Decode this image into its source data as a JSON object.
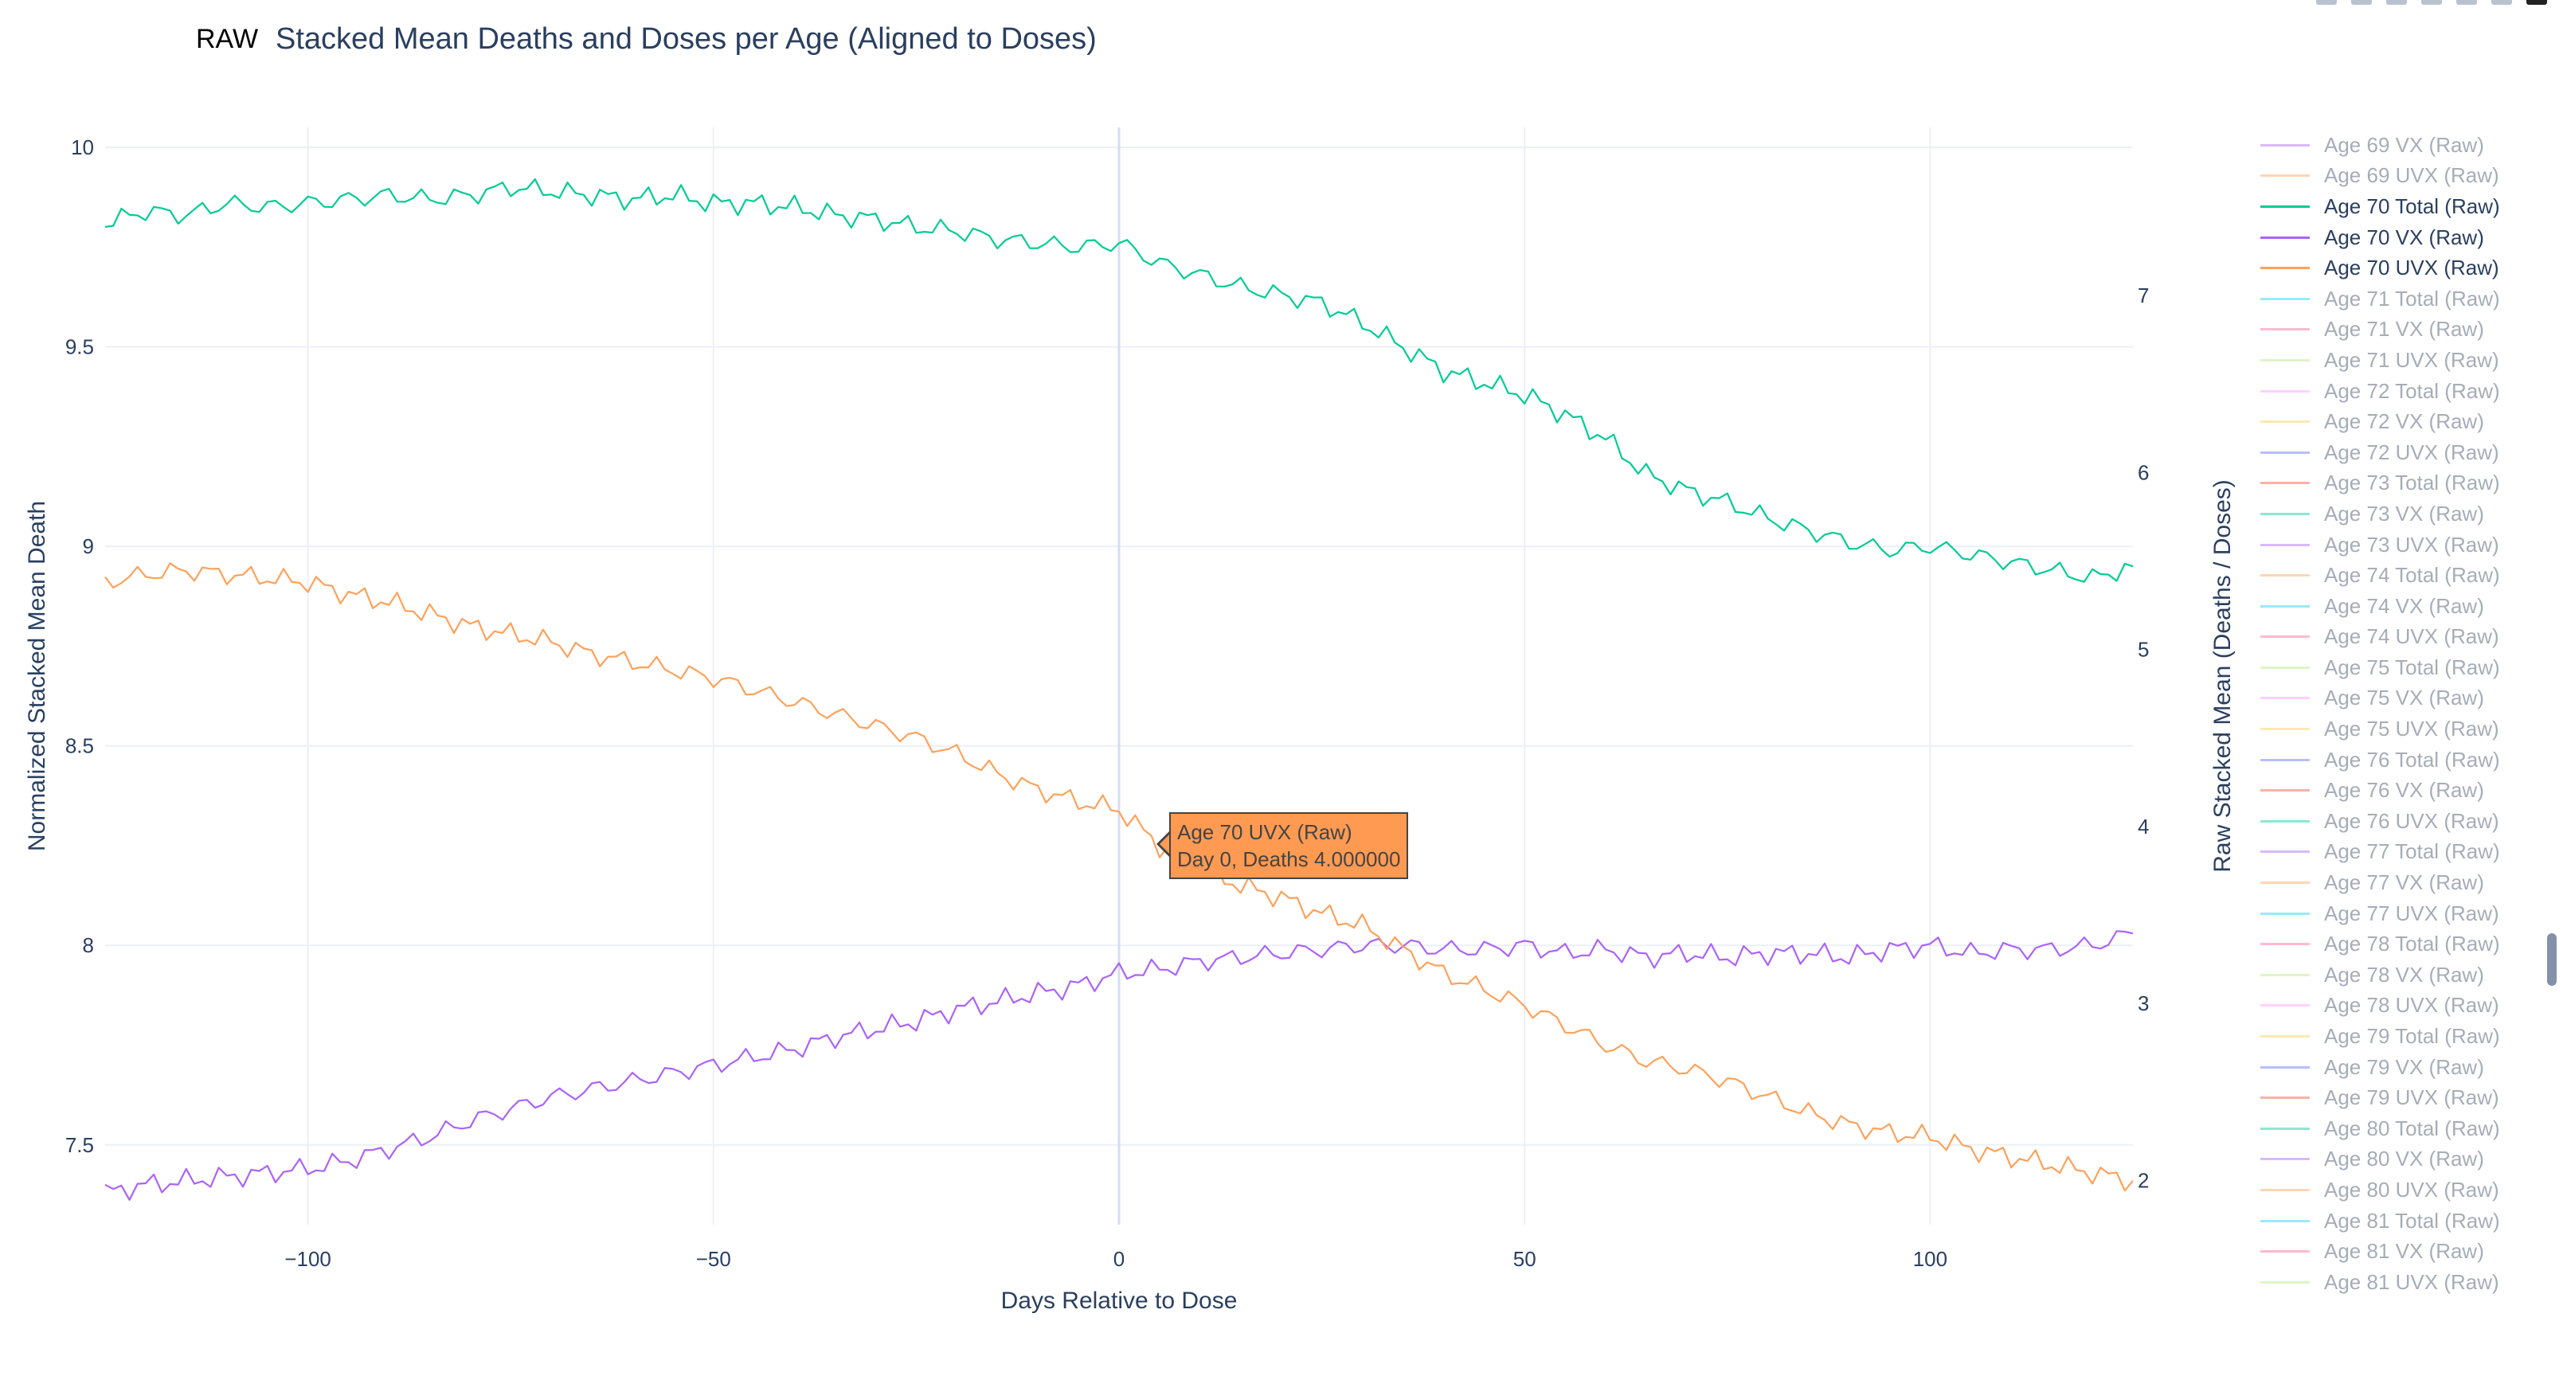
{
  "header": {
    "mode_badge": "RAW",
    "title": "Stacked Mean Deaths and Doses per Age (Aligned to Doses)"
  },
  "colors": {
    "total": "#00cc96",
    "vx": "#ab63fa",
    "uvx": "#ffa15a",
    "grid": "#ebf0f8",
    "axis_text": "#2a3f5f",
    "hover_line": "#d5dcf5"
  },
  "tooltip": {
    "series": "Age 70 UVX (Raw)",
    "detail": "Day 0, Deaths 4.000000"
  },
  "legend": {
    "items": [
      {
        "label": "Age 69 VX (Raw)",
        "color": "#ab63fa",
        "visible": false
      },
      {
        "label": "Age 69 UVX (Raw)",
        "color": "#ffa15a",
        "visible": false
      },
      {
        "label": "Age 70 Total (Raw)",
        "color": "#00cc96",
        "visible": true
      },
      {
        "label": "Age 70 VX (Raw)",
        "color": "#ab63fa",
        "visible": true
      },
      {
        "label": "Age 70 UVX (Raw)",
        "color": "#ffa15a",
        "visible": true
      },
      {
        "label": "Age 71 Total (Raw)",
        "color": "#19d3f3",
        "visible": false
      },
      {
        "label": "Age 71 VX (Raw)",
        "color": "#ff6692",
        "visible": false
      },
      {
        "label": "Age 71 UVX (Raw)",
        "color": "#b6e880",
        "visible": false
      },
      {
        "label": "Age 72 Total (Raw)",
        "color": "#ff97ff",
        "visible": false
      },
      {
        "label": "Age 72 VX (Raw)",
        "color": "#fecb52",
        "visible": false
      },
      {
        "label": "Age 72 UVX (Raw)",
        "color": "#636efa",
        "visible": false
      },
      {
        "label": "Age 73 Total (Raw)",
        "color": "#ef553b",
        "visible": false
      },
      {
        "label": "Age 73 VX (Raw)",
        "color": "#00cc96",
        "visible": false
      },
      {
        "label": "Age 73 UVX (Raw)",
        "color": "#ab63fa",
        "visible": false
      },
      {
        "label": "Age 74 Total (Raw)",
        "color": "#ffa15a",
        "visible": false
      },
      {
        "label": "Age 74 VX (Raw)",
        "color": "#19d3f3",
        "visible": false
      },
      {
        "label": "Age 74 UVX (Raw)",
        "color": "#ff6692",
        "visible": false
      },
      {
        "label": "Age 75 Total (Raw)",
        "color": "#b6e880",
        "visible": false
      },
      {
        "label": "Age 75 VX (Raw)",
        "color": "#ff97ff",
        "visible": false
      },
      {
        "label": "Age 75 UVX (Raw)",
        "color": "#fecb52",
        "visible": false
      },
      {
        "label": "Age 76 Total (Raw)",
        "color": "#636efa",
        "visible": false
      },
      {
        "label": "Age 76 VX (Raw)",
        "color": "#ef553b",
        "visible": false
      },
      {
        "label": "Age 76 UVX (Raw)",
        "color": "#00cc96",
        "visible": false
      },
      {
        "label": "Age 77 Total (Raw)",
        "color": "#ab63fa",
        "visible": false
      },
      {
        "label": "Age 77 VX (Raw)",
        "color": "#ffa15a",
        "visible": false
      },
      {
        "label": "Age 77 UVX (Raw)",
        "color": "#19d3f3",
        "visible": false
      },
      {
        "label": "Age 78 Total (Raw)",
        "color": "#ff6692",
        "visible": false
      },
      {
        "label": "Age 78 VX (Raw)",
        "color": "#b6e880",
        "visible": false
      },
      {
        "label": "Age 78 UVX (Raw)",
        "color": "#ff97ff",
        "visible": false
      },
      {
        "label": "Age 79 Total (Raw)",
        "color": "#fecb52",
        "visible": false
      },
      {
        "label": "Age 79 VX (Raw)",
        "color": "#636efa",
        "visible": false
      },
      {
        "label": "Age 79 UVX (Raw)",
        "color": "#ef553b",
        "visible": false
      },
      {
        "label": "Age 80 Total (Raw)",
        "color": "#00cc96",
        "visible": false
      },
      {
        "label": "Age 80 VX (Raw)",
        "color": "#ab63fa",
        "visible": false
      },
      {
        "label": "Age 80 UVX (Raw)",
        "color": "#ffa15a",
        "visible": false
      },
      {
        "label": "Age 81 Total (Raw)",
        "color": "#19d3f3",
        "visible": false
      },
      {
        "label": "Age 81 VX (Raw)",
        "color": "#ff6692",
        "visible": false
      },
      {
        "label": "Age 81 UVX (Raw)",
        "color": "#b6e880",
        "visible": false
      }
    ]
  },
  "chart_data": {
    "type": "line",
    "title": "Stacked Mean Deaths and Doses per Age (Aligned to Doses)",
    "xlabel": "Days Relative to Dose",
    "ylabel": "Normalized Stacked Mean Death",
    "y2label": "Raw Stacked Mean (Deaths / Doses)",
    "xlim": [
      -125,
      125
    ],
    "ylim": [
      7.3,
      10.05
    ],
    "y2lim": [
      1.75,
      7.95
    ],
    "x_ticks": [
      -100,
      -50,
      0,
      50,
      100
    ],
    "x_tick_labels": [
      "−100",
      "−50",
      "0",
      "50",
      "100"
    ],
    "y_ticks": [
      7.5,
      8,
      8.5,
      9,
      9.5,
      10
    ],
    "y_tick_labels": [
      "7.5",
      "8",
      "8.5",
      "9",
      "9.5",
      "10"
    ],
    "y2_ticks": [
      2,
      3,
      4,
      5,
      6,
      7
    ],
    "y2_tick_labels": [
      "2",
      "3",
      "4",
      "5",
      "6",
      "7"
    ],
    "grid": true,
    "hover_x": 0,
    "series": [
      {
        "name": "Age 70 Total (Raw)",
        "color": "#00cc96",
        "x": [
          -125,
          -120,
          -115,
          -110,
          -105,
          -100,
          -95,
          -90,
          -85,
          -80,
          -75,
          -70,
          -65,
          -60,
          -55,
          -50,
          -45,
          -40,
          -35,
          -30,
          -25,
          -20,
          -15,
          -10,
          -5,
          0,
          5,
          10,
          15,
          20,
          25,
          30,
          35,
          40,
          45,
          50,
          55,
          60,
          65,
          70,
          75,
          80,
          85,
          90,
          95,
          100,
          105,
          110,
          115,
          120,
          125
        ],
        "y": [
          9.81,
          9.84,
          9.83,
          9.86,
          9.85,
          9.86,
          9.87,
          9.88,
          9.87,
          9.88,
          9.9,
          9.89,
          9.88,
          9.87,
          9.88,
          9.86,
          9.86,
          9.85,
          9.83,
          9.82,
          9.8,
          9.79,
          9.77,
          9.76,
          9.75,
          9.76,
          9.71,
          9.68,
          9.65,
          9.63,
          9.61,
          9.56,
          9.5,
          9.44,
          9.41,
          9.38,
          9.33,
          9.27,
          9.18,
          9.14,
          9.11,
          9.07,
          9.04,
          9.01,
          8.99,
          9.0,
          8.98,
          8.96,
          8.94,
          8.92,
          8.95
        ]
      },
      {
        "name": "Age 70 VX (Raw)",
        "color": "#ab63fa",
        "x": [
          -125,
          -120,
          -115,
          -110,
          -105,
          -100,
          -95,
          -90,
          -85,
          -80,
          -75,
          -70,
          -65,
          -60,
          -55,
          -50,
          -45,
          -40,
          -35,
          -30,
          -25,
          -20,
          -15,
          -10,
          -5,
          0,
          5,
          10,
          15,
          20,
          25,
          30,
          35,
          40,
          45,
          50,
          55,
          60,
          65,
          70,
          75,
          80,
          85,
          90,
          95,
          100,
          105,
          110,
          115,
          120,
          125
        ],
        "y": [
          7.38,
          7.4,
          7.41,
          7.42,
          7.43,
          7.44,
          7.46,
          7.49,
          7.52,
          7.56,
          7.59,
          7.62,
          7.64,
          7.66,
          7.68,
          7.7,
          7.72,
          7.74,
          7.77,
          7.79,
          7.81,
          7.84,
          7.86,
          7.88,
          7.9,
          7.93,
          7.94,
          7.96,
          7.97,
          7.98,
          7.99,
          8.0,
          8.0,
          7.99,
          7.99,
          8.0,
          7.98,
          7.99,
          7.97,
          7.98,
          7.97,
          7.98,
          7.98,
          7.97,
          7.99,
          8.0,
          7.98,
          7.99,
          7.99,
          8.0,
          8.03
        ]
      },
      {
        "name": "Age 70 UVX (Raw)",
        "color": "#ffa15a",
        "x": [
          -125,
          -120,
          -115,
          -110,
          -105,
          -100,
          -95,
          -90,
          -85,
          -80,
          -75,
          -70,
          -65,
          -60,
          -55,
          -50,
          -45,
          -40,
          -35,
          -30,
          -25,
          -20,
          -15,
          -10,
          -5,
          0,
          5,
          10,
          15,
          20,
          25,
          30,
          35,
          40,
          45,
          50,
          55,
          60,
          65,
          70,
          75,
          80,
          85,
          90,
          95,
          100,
          105,
          110,
          115,
          120,
          125
        ],
        "y": [
          8.91,
          8.93,
          8.94,
          8.93,
          8.92,
          8.91,
          8.88,
          8.86,
          8.83,
          8.8,
          8.78,
          8.76,
          8.73,
          8.71,
          8.69,
          8.67,
          8.64,
          8.61,
          8.58,
          8.55,
          8.52,
          8.48,
          8.43,
          8.39,
          8.36,
          8.34,
          8.25,
          8.19,
          8.15,
          8.12,
          8.08,
          8.05,
          7.99,
          7.93,
          7.89,
          7.85,
          7.8,
          7.75,
          7.71,
          7.69,
          7.66,
          7.62,
          7.58,
          7.55,
          7.53,
          7.52,
          7.49,
          7.47,
          7.45,
          7.43,
          7.41
        ]
      }
    ]
  }
}
